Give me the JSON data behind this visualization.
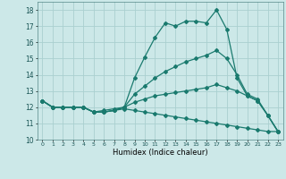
{
  "xlabel": "Humidex (Indice chaleur)",
  "xlim": [
    -0.5,
    23.5
  ],
  "ylim": [
    10,
    18.5
  ],
  "yticks": [
    10,
    11,
    12,
    13,
    14,
    15,
    16,
    17,
    18
  ],
  "xticks": [
    0,
    1,
    2,
    3,
    4,
    5,
    6,
    7,
    8,
    9,
    10,
    11,
    12,
    13,
    14,
    15,
    16,
    17,
    18,
    19,
    20,
    21,
    22,
    23
  ],
  "background_color": "#cce8e8",
  "grid_color": "#aad0d0",
  "line_color": "#1a7a6e",
  "line1": [
    12.4,
    12.0,
    12.0,
    12.0,
    12.0,
    11.7,
    11.7,
    11.8,
    12.0,
    13.8,
    15.1,
    16.3,
    17.2,
    17.0,
    17.3,
    17.3,
    17.2,
    18.0,
    16.8,
    13.8,
    12.7,
    12.4,
    11.5,
    10.5
  ],
  "line2": [
    12.4,
    12.0,
    12.0,
    12.0,
    12.0,
    11.7,
    11.7,
    11.8,
    12.0,
    12.8,
    13.3,
    13.8,
    14.2,
    14.5,
    14.8,
    15.0,
    15.2,
    15.5,
    15.0,
    14.0,
    12.8,
    12.5,
    11.5,
    10.5
  ],
  "line3": [
    12.4,
    12.0,
    12.0,
    12.0,
    12.0,
    11.7,
    11.8,
    11.9,
    12.0,
    12.3,
    12.5,
    12.7,
    12.8,
    12.9,
    13.0,
    13.1,
    13.2,
    13.4,
    13.2,
    13.0,
    12.7,
    12.4,
    11.5,
    10.5
  ],
  "line4": [
    12.4,
    12.0,
    12.0,
    12.0,
    12.0,
    11.7,
    11.7,
    11.8,
    11.9,
    11.8,
    11.7,
    11.6,
    11.5,
    11.4,
    11.3,
    11.2,
    11.1,
    11.0,
    10.9,
    10.8,
    10.7,
    10.6,
    10.5,
    10.5
  ]
}
